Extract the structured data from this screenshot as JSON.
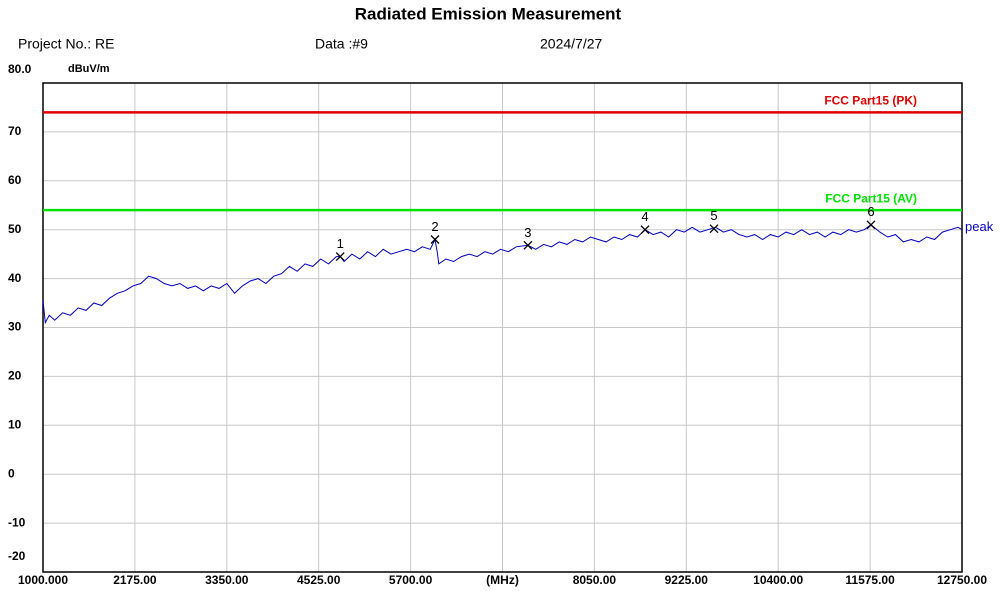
{
  "chart_data": {
    "type": "line",
    "title": "Radiated Emission Measurement",
    "project": "Project No.: RE",
    "data_no": "Data :#9",
    "date": "2024/7/27",
    "y_label": "dBuV/m",
    "xlim": [
      1000,
      12750
    ],
    "xticks": [
      {
        "value": 1000,
        "label": "1000.000"
      },
      {
        "value": 2175,
        "label": "2175.00"
      },
      {
        "value": 3350,
        "label": "3350.00"
      },
      {
        "value": 4525,
        "label": "4525.00"
      },
      {
        "value": 5700,
        "label": "5700.00"
      },
      {
        "value": 6875,
        "label": "(MHz)"
      },
      {
        "value": 8050,
        "label": "8050.00"
      },
      {
        "value": 9225,
        "label": "9225.00"
      },
      {
        "value": 10400,
        "label": "10400.00"
      },
      {
        "value": 11575,
        "label": "11575.00"
      },
      {
        "value": 12750,
        "label": "12750.00"
      }
    ],
    "ylim": [
      -20,
      80
    ],
    "yticks": [
      -20,
      -10,
      0,
      10,
      20,
      30,
      40,
      50,
      60,
      70,
      {
        "value": 80,
        "label": "80.0"
      }
    ],
    "grid": true,
    "limits": [
      {
        "name": "FCC Part15 (PK)",
        "value": 74,
        "color": "#e00000"
      },
      {
        "name": "FCC Part15 (AV)",
        "value": 54,
        "color": "#00e000"
      }
    ],
    "series": [
      {
        "name": "peak",
        "color": "#0000c0",
        "x": [
          1000,
          1030,
          1080,
          1150,
          1250,
          1350,
          1450,
          1550,
          1650,
          1750,
          1850,
          1950,
          2050,
          2150,
          2250,
          2350,
          2450,
          2550,
          2650,
          2750,
          2850,
          2950,
          3050,
          3150,
          3250,
          3350,
          3450,
          3550,
          3650,
          3750,
          3850,
          3950,
          4050,
          4150,
          4250,
          4350,
          4450,
          4550,
          4650,
          4750,
          4800,
          4850,
          4950,
          5050,
          5150,
          5250,
          5350,
          5450,
          5550,
          5650,
          5750,
          5850,
          5950,
          6012,
          6040,
          6060,
          6150,
          6250,
          6350,
          6450,
          6550,
          6650,
          6750,
          6850,
          6950,
          7050,
          7200,
          7300,
          7400,
          7500,
          7600,
          7700,
          7800,
          7900,
          8000,
          8100,
          8200,
          8300,
          8400,
          8500,
          8600,
          8700,
          8800,
          8900,
          9000,
          9100,
          9200,
          9300,
          9400,
          9500,
          9600,
          9700,
          9800,
          9900,
          10000,
          10100,
          10200,
          10300,
          10400,
          10500,
          10600,
          10700,
          10800,
          10900,
          11000,
          11100,
          11200,
          11300,
          11400,
          11500,
          11586,
          11700,
          11800,
          11900,
          12000,
          12100,
          12200,
          12300,
          12400,
          12500,
          12600,
          12700,
          12750
        ],
        "values": [
          35.5,
          31,
          32.5,
          31.5,
          33,
          32.5,
          34,
          33.5,
          35,
          34.5,
          36,
          37,
          37.5,
          38.5,
          39,
          40.5,
          40,
          39,
          38.5,
          39,
          38,
          38.5,
          37.5,
          38.5,
          38,
          39,
          37,
          38.5,
          39.5,
          40,
          39,
          40.5,
          41,
          42.5,
          41.5,
          43,
          42.5,
          44,
          43,
          44.5,
          44.5,
          43.5,
          45,
          44,
          45.5,
          44.5,
          46,
          45,
          45.5,
          46,
          45.5,
          46.5,
          46,
          48,
          45.5,
          43,
          44,
          43.5,
          44.5,
          45,
          44.5,
          45.5,
          45,
          46,
          45.5,
          46.5,
          46.8,
          46,
          47,
          46.5,
          47.5,
          47,
          48,
          47.5,
          48.5,
          48,
          47.5,
          48.5,
          48,
          49,
          48.5,
          50,
          49,
          49.5,
          48.5,
          50,
          49.5,
          50.5,
          49.5,
          50,
          50.5,
          49.5,
          50,
          49,
          48.5,
          49,
          48,
          49,
          48.5,
          49.5,
          49,
          50,
          49,
          49.5,
          48.5,
          49.5,
          49,
          50,
          49.5,
          50,
          51,
          49.5,
          48.5,
          49,
          47.5,
          48,
          47.5,
          48.5,
          48,
          49.5,
          50,
          50.5,
          50
        ]
      }
    ],
    "markers": {
      "labels": [
        "1",
        "2",
        "3",
        "4",
        "5",
        "6"
      ],
      "x": [
        4800,
        6012,
        7200,
        8697,
        9579,
        11586
      ],
      "values": [
        44.5,
        48,
        46.8,
        50,
        50.2,
        51
      ]
    }
  }
}
